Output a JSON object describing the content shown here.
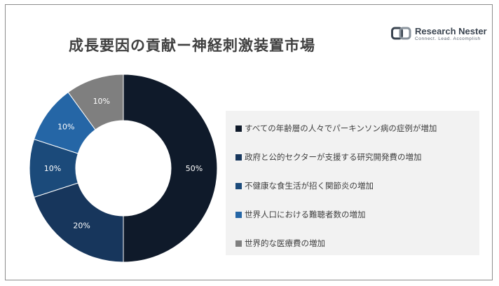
{
  "header": {
    "title": "成長要因の貢献ー神経刺激装置市場",
    "brand_name": "Research Nester",
    "brand_tagline": "Connect. Lead. Accomplish"
  },
  "chart_data": {
    "type": "pie",
    "variant": "donut",
    "legend_position": "right",
    "slices": [
      {
        "label": "すべての年齢層の人々でパーキンソン病の症例が増加",
        "value": 50,
        "value_label": "50%",
        "color": "#0f1a2a"
      },
      {
        "label": "政府と公的セクターが支援する研究開発費の増加",
        "value": 20,
        "value_label": "20%",
        "color": "#17365c"
      },
      {
        "label": "不健康な食生活が招く関節炎の増加",
        "value": 10,
        "value_label": "10%",
        "color": "#1b4a7a"
      },
      {
        "label": "世界人口における難聴者数の増加",
        "value": 10,
        "value_label": "10%",
        "color": "#2566a6"
      },
      {
        "label": "世界的な医療費の増加",
        "value": 10,
        "value_label": "10%",
        "color": "#7f7f7f"
      }
    ]
  }
}
